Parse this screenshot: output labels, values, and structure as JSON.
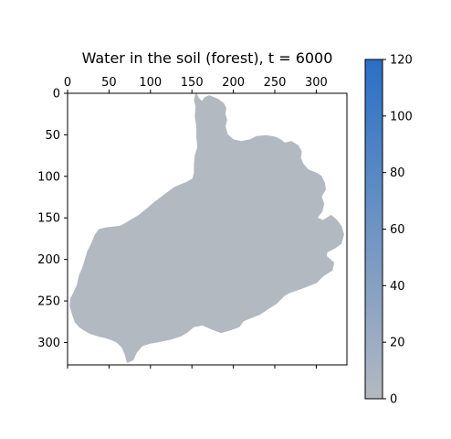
{
  "chart_data": {
    "type": "heatmap",
    "title": "Water in the soil (forest), t = 6000",
    "xlabel": "",
    "ylabel": "",
    "xlim": [
      0,
      337
    ],
    "ylim": [
      327,
      0
    ],
    "x_ticks": [
      0,
      50,
      100,
      150,
      200,
      250,
      300
    ],
    "x_tick_labels": [
      "0",
      "50",
      "100",
      "150",
      "200",
      "250",
      "300"
    ],
    "y_ticks": [
      0,
      50,
      100,
      150,
      200,
      250,
      300
    ],
    "y_tick_labels": [
      "0",
      "50",
      "100",
      "150",
      "200",
      "250",
      "300"
    ],
    "x_axis_labels_position": "top",
    "grid": false,
    "colorbar": {
      "range": [
        0,
        120
      ],
      "ticks": [
        0,
        20,
        40,
        60,
        80,
        100,
        120
      ],
      "tick_labels": [
        "0",
        "20",
        "40",
        "60",
        "80",
        "100",
        "120"
      ],
      "color_low": "#b3b9c1",
      "color_high": "#2a6fc6",
      "position": "right"
    },
    "fill_color": "#b3b9c1",
    "region": {
      "name": "catchment",
      "value_estimate": 0,
      "outline": [
        [
          155,
          0
        ],
        [
          158,
          6
        ],
        [
          162,
          10
        ],
        [
          166,
          5
        ],
        [
          171,
          3
        ],
        [
          181,
          7
        ],
        [
          188,
          12
        ],
        [
          191,
          18
        ],
        [
          190,
          25
        ],
        [
          192,
          32
        ],
        [
          190,
          40
        ],
        [
          193,
          50
        ],
        [
          200,
          56
        ],
        [
          210,
          58
        ],
        [
          220,
          56
        ],
        [
          228,
          52
        ],
        [
          240,
          51
        ],
        [
          251,
          53
        ],
        [
          257,
          56
        ],
        [
          262,
          60
        ],
        [
          270,
          58
        ],
        [
          278,
          63
        ],
        [
          282,
          70
        ],
        [
          281,
          78
        ],
        [
          284,
          85
        ],
        [
          290,
          92
        ],
        [
          300,
          96
        ],
        [
          306,
          100
        ],
        [
          310,
          108
        ],
        [
          311,
          116
        ],
        [
          306,
          124
        ],
        [
          309,
          133
        ],
        [
          307,
          142
        ],
        [
          301,
          150
        ],
        [
          308,
          153
        ],
        [
          318,
          147
        ],
        [
          324,
          152
        ],
        [
          330,
          160
        ],
        [
          333,
          170
        ],
        [
          330,
          181
        ],
        [
          323,
          186
        ],
        [
          313,
          191
        ],
        [
          312,
          196
        ],
        [
          321,
          204
        ],
        [
          319,
          213
        ],
        [
          308,
          220
        ],
        [
          300,
          228
        ],
        [
          290,
          232
        ],
        [
          280,
          236
        ],
        [
          270,
          239
        ],
        [
          262,
          243
        ],
        [
          252,
          253
        ],
        [
          241,
          260
        ],
        [
          232,
          266
        ],
        [
          222,
          270
        ],
        [
          212,
          274
        ],
        [
          207,
          281
        ],
        [
          196,
          285
        ],
        [
          185,
          288
        ],
        [
          174,
          284
        ],
        [
          163,
          279
        ],
        [
          152,
          281
        ],
        [
          145,
          287
        ],
        [
          137,
          292
        ],
        [
          125,
          296
        ],
        [
          110,
          299
        ],
        [
          99,
          301
        ],
        [
          90,
          304
        ],
        [
          83,
          312
        ],
        [
          79,
          321
        ],
        [
          72,
          324
        ],
        [
          70,
          316
        ],
        [
          66,
          306
        ],
        [
          60,
          300
        ],
        [
          54,
          297
        ],
        [
          45,
          294
        ],
        [
          36,
          292
        ],
        [
          27,
          289
        ],
        [
          20,
          285
        ],
        [
          14,
          281
        ],
        [
          9,
          275
        ],
        [
          6,
          266
        ],
        [
          3,
          256
        ],
        [
          4,
          247
        ],
        [
          8,
          239
        ],
        [
          12,
          230
        ],
        [
          14,
          220
        ],
        [
          18,
          211
        ],
        [
          21,
          201
        ],
        [
          24,
          191
        ],
        [
          29,
          181
        ],
        [
          33,
          171
        ],
        [
          38,
          164
        ],
        [
          46,
          162
        ],
        [
          55,
          161
        ],
        [
          64,
          160
        ],
        [
          74,
          154
        ],
        [
          86,
          147
        ],
        [
          96,
          139
        ],
        [
          104,
          132
        ],
        [
          112,
          126
        ],
        [
          121,
          119
        ],
        [
          128,
          114
        ],
        [
          134,
          111
        ],
        [
          144,
          107
        ],
        [
          151,
          103
        ],
        [
          153,
          96
        ],
        [
          153,
          86
        ],
        [
          154,
          75
        ],
        [
          157,
          65
        ],
        [
          156,
          53
        ],
        [
          156,
          40
        ],
        [
          154,
          28
        ],
        [
          155,
          16
        ],
        [
          153,
          8
        ]
      ]
    }
  }
}
